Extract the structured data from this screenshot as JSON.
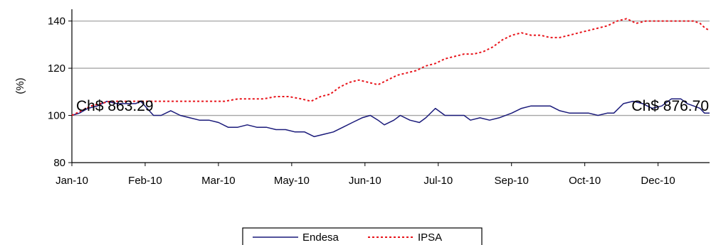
{
  "chart_data": {
    "type": "line",
    "ylabel": "(%)",
    "ylim": [
      80,
      145
    ],
    "yticks": [
      80,
      100,
      120,
      140
    ],
    "xlim": [
      0,
      1
    ],
    "xticks": [
      {
        "label": "Jan-10",
        "pos": 0.0
      },
      {
        "label": "Feb-10",
        "pos": 0.1149
      },
      {
        "label": "Mar-10",
        "pos": 0.2298
      },
      {
        "label": "May-10",
        "pos": 0.3447
      },
      {
        "label": "Jun-10",
        "pos": 0.4596
      },
      {
        "label": "Jul-10",
        "pos": 0.5745
      },
      {
        "label": "Sep-10",
        "pos": 0.6894
      },
      {
        "label": "Oct-10",
        "pos": 0.8043
      },
      {
        "label": "Dec-10",
        "pos": 0.9192
      }
    ],
    "grid": "horizontal",
    "legend": "bottom-center",
    "annotations": [
      {
        "text": "Ch$ 863.29",
        "x": 0.0,
        "y": 104
      },
      {
        "text": "Ch$ 876.70",
        "x": 1.0,
        "y": 104
      }
    ],
    "series": [
      {
        "name": "Endesa",
        "color": "#1a1a7a",
        "style": "solid",
        "points": [
          [
            0.0,
            100
          ],
          [
            0.012,
            101
          ],
          [
            0.025,
            103
          ],
          [
            0.04,
            104
          ],
          [
            0.055,
            106
          ],
          [
            0.07,
            105
          ],
          [
            0.085,
            105
          ],
          [
            0.1,
            105
          ],
          [
            0.108,
            106
          ],
          [
            0.118,
            103
          ],
          [
            0.128,
            100
          ],
          [
            0.14,
            100
          ],
          [
            0.155,
            102
          ],
          [
            0.17,
            100
          ],
          [
            0.185,
            99
          ],
          [
            0.2,
            98
          ],
          [
            0.215,
            98
          ],
          [
            0.23,
            97
          ],
          [
            0.245,
            95
          ],
          [
            0.26,
            95
          ],
          [
            0.275,
            96
          ],
          [
            0.29,
            95
          ],
          [
            0.305,
            95
          ],
          [
            0.32,
            94
          ],
          [
            0.335,
            94
          ],
          [
            0.35,
            93
          ],
          [
            0.365,
            93
          ],
          [
            0.38,
            91
          ],
          [
            0.395,
            92
          ],
          [
            0.41,
            93
          ],
          [
            0.425,
            95
          ],
          [
            0.44,
            97
          ],
          [
            0.455,
            99
          ],
          [
            0.468,
            100
          ],
          [
            0.48,
            98
          ],
          [
            0.49,
            96
          ],
          [
            0.505,
            98
          ],
          [
            0.515,
            100
          ],
          [
            0.53,
            98
          ],
          [
            0.545,
            97
          ],
          [
            0.555,
            99
          ],
          [
            0.57,
            103
          ],
          [
            0.585,
            100
          ],
          [
            0.6,
            100
          ],
          [
            0.615,
            100
          ],
          [
            0.625,
            98
          ],
          [
            0.64,
            99
          ],
          [
            0.655,
            98
          ],
          [
            0.67,
            99
          ],
          [
            0.69,
            101
          ],
          [
            0.705,
            103
          ],
          [
            0.72,
            104
          ],
          [
            0.735,
            104
          ],
          [
            0.75,
            104
          ],
          [
            0.765,
            102
          ],
          [
            0.78,
            101
          ],
          [
            0.795,
            101
          ],
          [
            0.81,
            101
          ],
          [
            0.825,
            100
          ],
          [
            0.84,
            101
          ],
          [
            0.85,
            101
          ],
          [
            0.865,
            105
          ],
          [
            0.88,
            106
          ],
          [
            0.895,
            105
          ],
          [
            0.91,
            103
          ],
          [
            0.925,
            104
          ],
          [
            0.94,
            107
          ],
          [
            0.955,
            107
          ],
          [
            0.965,
            105
          ],
          [
            0.975,
            104
          ],
          [
            0.985,
            103
          ],
          [
            0.992,
            101
          ],
          [
            1.0,
            101
          ]
        ]
      },
      {
        "name": "IPSA",
        "color": "#e8141b",
        "style": "dashed",
        "points": [
          [
            0.0,
            100
          ],
          [
            0.015,
            102
          ],
          [
            0.03,
            104
          ],
          [
            0.045,
            105
          ],
          [
            0.06,
            106
          ],
          [
            0.08,
            106
          ],
          [
            0.1,
            106
          ],
          [
            0.12,
            106
          ],
          [
            0.14,
            106
          ],
          [
            0.16,
            106
          ],
          [
            0.18,
            106
          ],
          [
            0.2,
            106
          ],
          [
            0.22,
            106
          ],
          [
            0.24,
            106
          ],
          [
            0.26,
            107
          ],
          [
            0.28,
            107
          ],
          [
            0.3,
            107
          ],
          [
            0.32,
            108
          ],
          [
            0.34,
            108
          ],
          [
            0.36,
            107
          ],
          [
            0.375,
            106
          ],
          [
            0.39,
            108
          ],
          [
            0.405,
            109
          ],
          [
            0.42,
            112
          ],
          [
            0.435,
            114
          ],
          [
            0.45,
            115
          ],
          [
            0.465,
            114
          ],
          [
            0.48,
            113
          ],
          [
            0.495,
            115
          ],
          [
            0.51,
            117
          ],
          [
            0.525,
            118
          ],
          [
            0.54,
            119
          ],
          [
            0.555,
            121
          ],
          [
            0.57,
            122
          ],
          [
            0.585,
            124
          ],
          [
            0.6,
            125
          ],
          [
            0.615,
            126
          ],
          [
            0.63,
            126
          ],
          [
            0.645,
            127
          ],
          [
            0.66,
            129
          ],
          [
            0.675,
            132
          ],
          [
            0.69,
            134
          ],
          [
            0.705,
            135
          ],
          [
            0.72,
            134
          ],
          [
            0.735,
            134
          ],
          [
            0.75,
            133
          ],
          [
            0.765,
            133
          ],
          [
            0.78,
            134
          ],
          [
            0.795,
            135
          ],
          [
            0.81,
            136
          ],
          [
            0.825,
            137
          ],
          [
            0.84,
            138
          ],
          [
            0.855,
            140
          ],
          [
            0.87,
            141
          ],
          [
            0.885,
            139
          ],
          [
            0.9,
            140
          ],
          [
            0.915,
            140
          ],
          [
            0.93,
            140
          ],
          [
            0.945,
            140
          ],
          [
            0.96,
            140
          ],
          [
            0.975,
            140
          ],
          [
            0.985,
            139
          ],
          [
            0.993,
            137
          ],
          [
            1.0,
            136
          ]
        ]
      }
    ]
  }
}
